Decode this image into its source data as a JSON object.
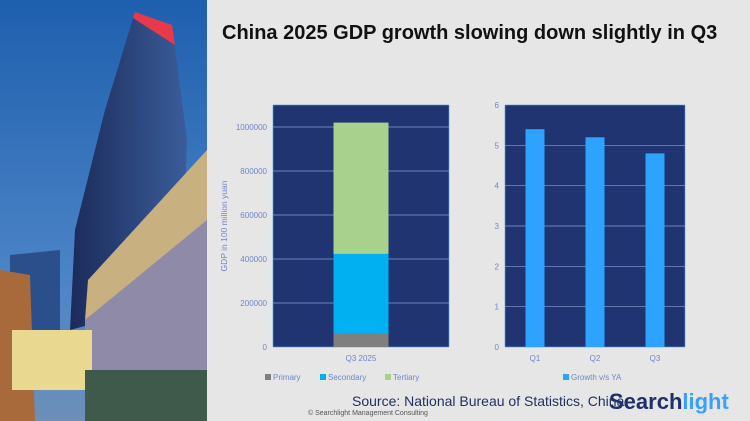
{
  "title": "China 2025 GDP growth slowing down slightly in Q3",
  "source": "Source: National Bureau of Statistics, China",
  "logo": {
    "part1": "Search",
    "part2": "light"
  },
  "copyright": "© Searchlight Management Consulting",
  "colors": {
    "plot_bg": "#1f3470",
    "primary": "#7f7f7f",
    "secondary": "#00b0f0",
    "tertiary": "#a9d18e",
    "growth": "#2ea2ff",
    "axis_text": "#6f86c8"
  },
  "chart_data": [
    {
      "type": "bar",
      "stacked": true,
      "categories": [
        "Q3 2025"
      ],
      "ylabel": "GDP in 100 million yuan",
      "ylim": [
        0,
        1100000
      ],
      "yticks": [
        0,
        200000,
        400000,
        600000,
        800000,
        1000000
      ],
      "legend": "bottom",
      "grid": true,
      "series": [
        {
          "name": "Primary",
          "values": [
            59000
          ]
        },
        {
          "name": "Secondary",
          "values": [
            364000
          ]
        },
        {
          "name": "Tertiary",
          "values": [
            597000
          ]
        }
      ]
    },
    {
      "type": "bar",
      "categories": [
        "Q1",
        "Q2",
        "Q3"
      ],
      "ylim": [
        0,
        6
      ],
      "yticks": [
        0,
        1,
        2,
        3,
        4,
        5,
        6
      ],
      "legend": "bottom",
      "grid": true,
      "series": [
        {
          "name": "Growth v/s YA",
          "values": [
            5.4,
            5.2,
            4.8
          ]
        }
      ]
    }
  ]
}
